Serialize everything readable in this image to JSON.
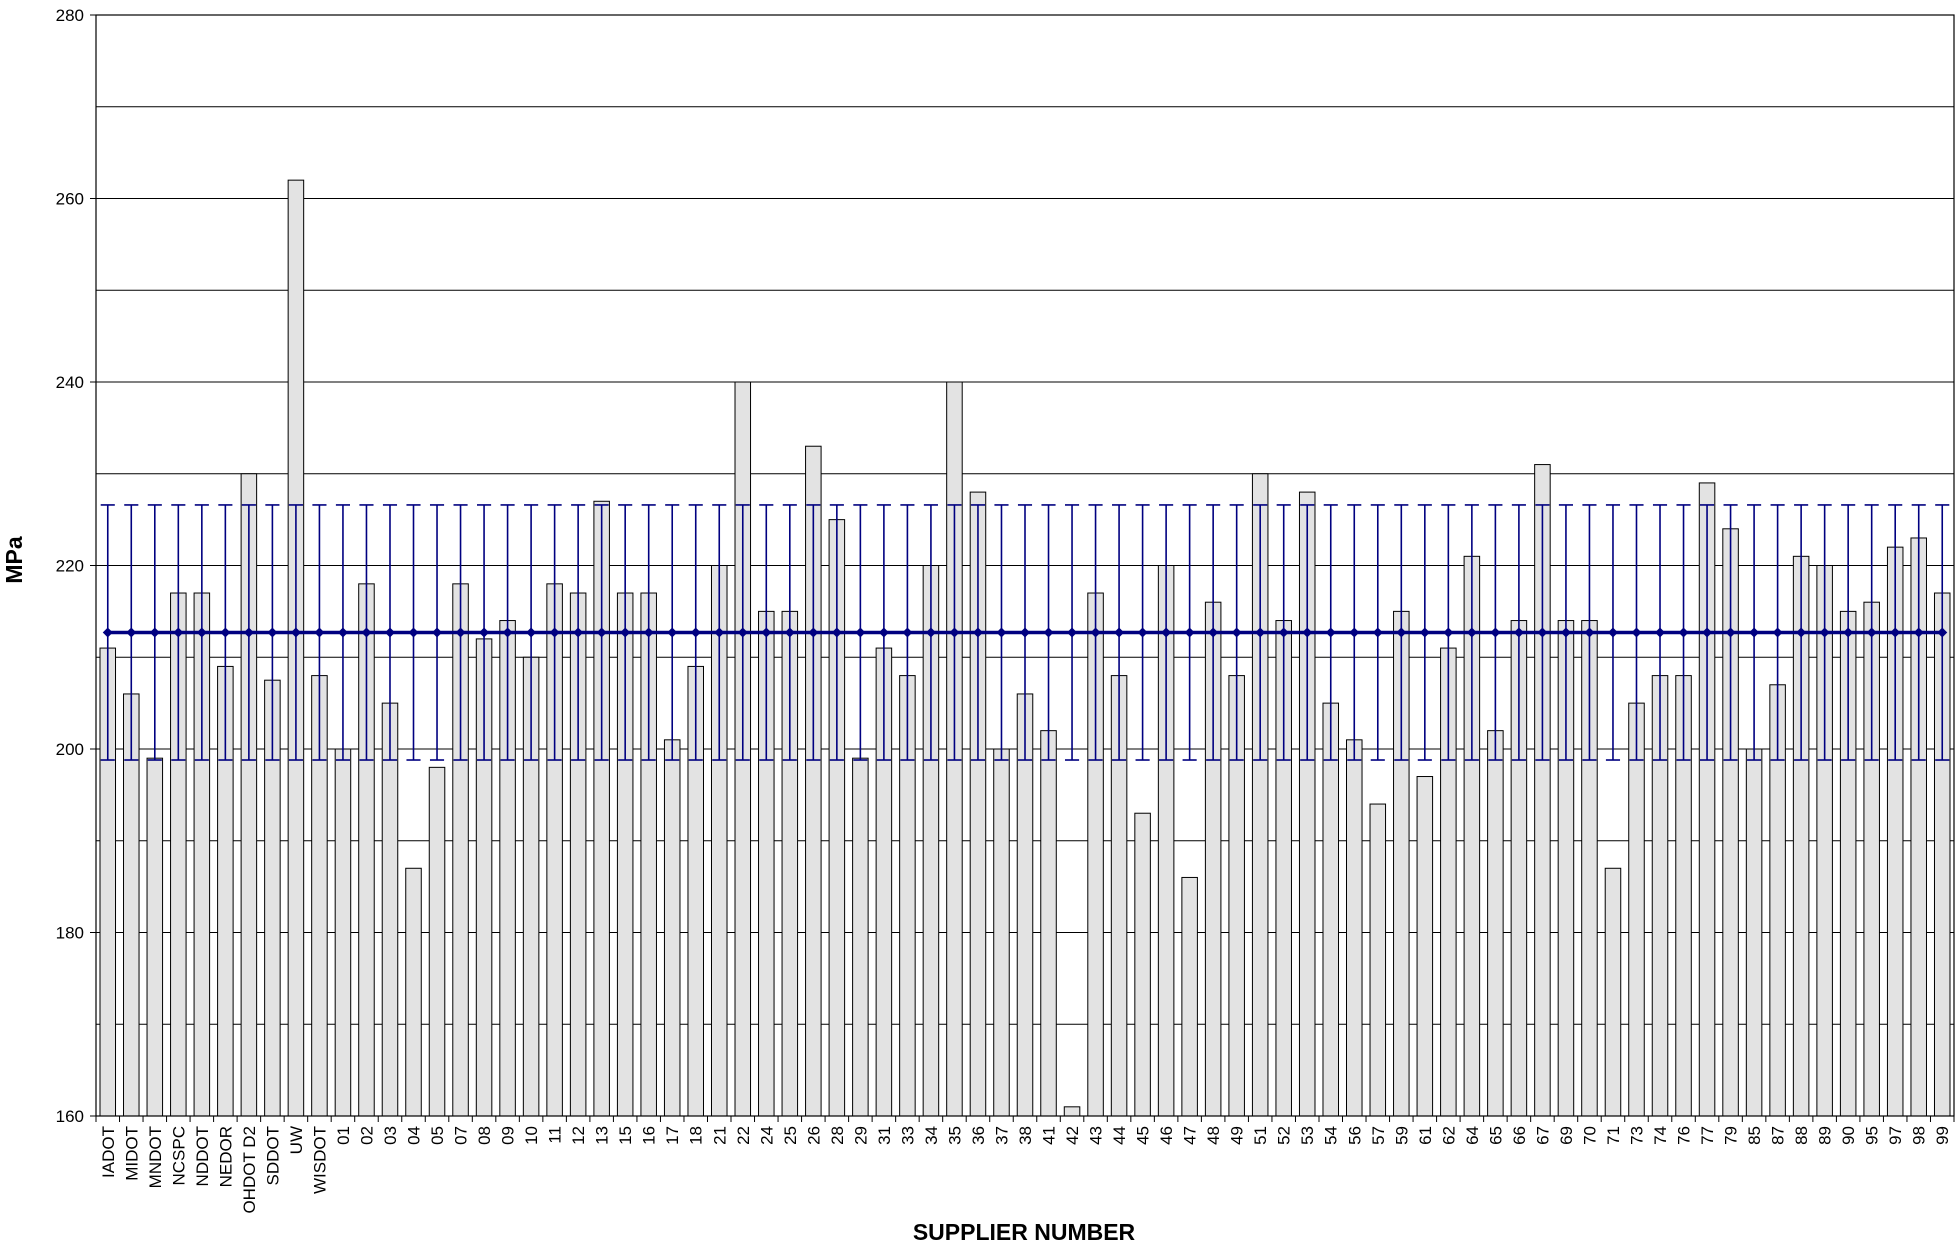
{
  "chart_data": {
    "type": "bar",
    "title": "",
    "xlabel": "SUPPLIER NUMBER",
    "ylabel": "MPa",
    "ylim": [
      160,
      280
    ],
    "yticks": [
      160,
      180,
      200,
      220,
      240,
      260,
      280
    ],
    "grid": true,
    "legend": "none",
    "categories": [
      "IADOT",
      "MIDOT",
      "MNDOT",
      "NCSPC",
      "NDDOT",
      "NEDOR",
      "OHDOT D2",
      "SDDOT",
      "UW",
      "WISDOT",
      "01",
      "02",
      "03",
      "04",
      "05",
      "07",
      "08",
      "09",
      "10",
      "11",
      "12",
      "13",
      "15",
      "16",
      "17",
      "18",
      "21",
      "22",
      "24",
      "25",
      "26",
      "28",
      "29",
      "31",
      "33",
      "34",
      "35",
      "36",
      "37",
      "38",
      "41",
      "42",
      "43",
      "44",
      "45",
      "46",
      "47",
      "48",
      "49",
      "51",
      "52",
      "53",
      "54",
      "56",
      "57",
      "59",
      "61",
      "62",
      "64",
      "65",
      "66",
      "67",
      "69",
      "70",
      "71",
      "73",
      "74",
      "76",
      "77",
      "79",
      "85",
      "87",
      "88",
      "89",
      "90",
      "95",
      "97",
      "98",
      "99"
    ],
    "series": [
      {
        "type": "bar",
        "values": [
          211,
          206,
          199,
          217,
          217,
          209,
          230,
          207.5,
          262,
          208,
          200,
          218,
          205,
          187,
          198,
          218,
          212,
          214,
          210,
          218,
          217,
          227,
          217,
          217,
          201,
          209,
          220,
          240,
          215,
          215,
          233,
          225,
          199,
          211,
          208,
          220,
          240,
          228,
          200,
          206,
          202,
          161,
          217,
          208,
          193,
          220,
          186,
          216,
          208,
          230,
          214,
          228,
          205,
          201,
          194,
          215,
          197,
          211,
          221,
          202,
          214,
          231,
          214,
          214,
          187,
          205,
          208,
          208,
          229,
          224,
          200,
          207,
          221,
          220,
          215,
          216,
          222,
          223,
          217
        ],
        "color": "#e3e3e3",
        "edge": "#000000"
      },
      {
        "type": "line",
        "mean": 212.7,
        "upper": 226.6,
        "lower": 198.8,
        "color": "#000080"
      }
    ]
  }
}
